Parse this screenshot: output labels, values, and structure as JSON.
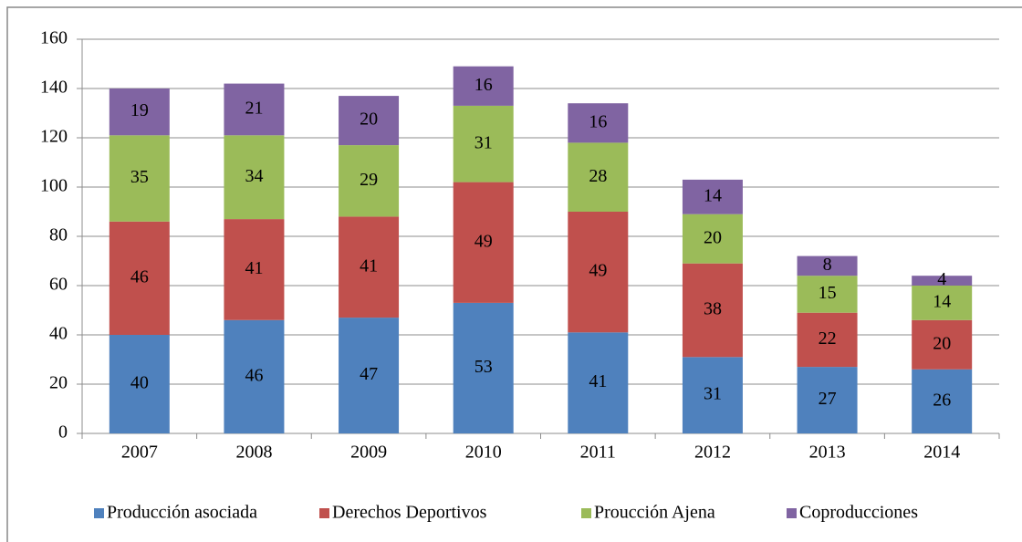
{
  "chart_data": {
    "type": "stacked_bar",
    "categories": [
      "2007",
      "2008",
      "2009",
      "2010",
      "2011",
      "2012",
      "2013",
      "2014"
    ],
    "series": [
      {
        "name": "Producción asociada",
        "color": "#4f81bd",
        "values": [
          40,
          46,
          47,
          53,
          41,
          31,
          27,
          26
        ]
      },
      {
        "name": "Derechos Deportivos",
        "color": "#c0504d",
        "values": [
          46,
          41,
          41,
          49,
          49,
          38,
          22,
          20
        ]
      },
      {
        "name": "Proucción Ajena",
        "color": "#9bbb59",
        "values": [
          35,
          34,
          29,
          31,
          28,
          20,
          15,
          14
        ]
      },
      {
        "name": "Coproducciones",
        "color": "#8064a2",
        "values": [
          19,
          21,
          20,
          16,
          16,
          14,
          8,
          4
        ]
      }
    ],
    "ylim": [
      0,
      160
    ],
    "yticks": [
      0,
      20,
      40,
      60,
      80,
      100,
      120,
      140,
      160
    ],
    "grid": true,
    "legend": "bottom"
  }
}
